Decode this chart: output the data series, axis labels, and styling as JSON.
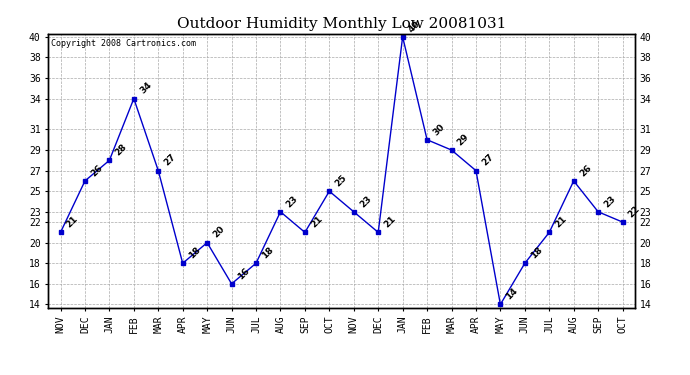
{
  "title": "Outdoor Humidity Monthly Low 20081031",
  "copyright": "Copyright 2008 Cartronics.com",
  "months": [
    "NOV",
    "DEC",
    "JAN",
    "FEB",
    "MAR",
    "APR",
    "MAY",
    "JUN",
    "JUL",
    "AUG",
    "SEP",
    "OCT",
    "NOV",
    "DEC",
    "JAN",
    "FEB",
    "MAR",
    "APR",
    "MAY",
    "JUN",
    "JUL",
    "AUG",
    "SEP",
    "OCT"
  ],
  "values": [
    21,
    26,
    28,
    34,
    27,
    18,
    20,
    16,
    18,
    23,
    21,
    25,
    23,
    21,
    40,
    30,
    29,
    27,
    14,
    18,
    21,
    26,
    23,
    22
  ],
  "ylim": [
    14,
    40
  ],
  "yticks": [
    14,
    16,
    18,
    20,
    22,
    23,
    25,
    27,
    29,
    31,
    34,
    36,
    38,
    40
  ],
  "line_color": "#0000cc",
  "marker": "s",
  "marker_size": 3,
  "grid_color": "#aaaaaa",
  "bg_color": "#ffffff",
  "title_fontsize": 11,
  "label_fontsize": 7,
  "annotation_fontsize": 6.5,
  "copyright_fontsize": 6
}
